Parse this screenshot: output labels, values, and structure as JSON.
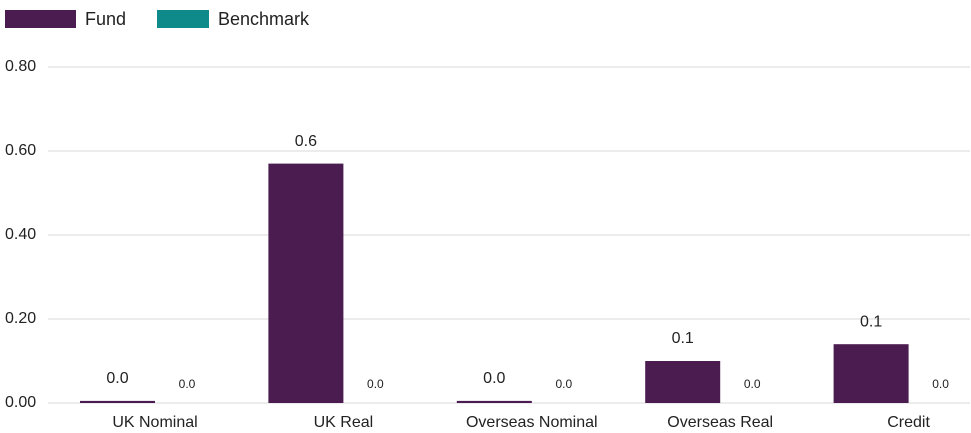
{
  "chart_data": {
    "type": "bar",
    "categories": [
      "UK Nominal",
      "UK Real",
      "Overseas Nominal",
      "Overseas Real",
      "Credit"
    ],
    "series": [
      {
        "name": "Fund",
        "color": "#4a1c4f",
        "values": [
          0.005,
          0.57,
          0.005,
          0.1,
          0.14
        ],
        "value_labels": [
          "0.0",
          "0.6",
          "0.0",
          "0.1",
          "0.1"
        ]
      },
      {
        "name": "Benchmark",
        "color": "#0f8a8a",
        "values": [
          0,
          0,
          0,
          0,
          0
        ],
        "value_labels": [
          "0.0",
          "0.0",
          "0.0",
          "0.0",
          "0.0"
        ]
      }
    ],
    "ylim": [
      0,
      0.8
    ],
    "yticks": [
      {
        "value": 0,
        "label": "0.00"
      },
      {
        "value": 0.2,
        "label": "0.20"
      },
      {
        "value": 0.4,
        "label": "0.40"
      },
      {
        "value": 0.6,
        "label": "0.60"
      },
      {
        "value": 0.8,
        "label": "0.80"
      }
    ],
    "grid": true
  }
}
